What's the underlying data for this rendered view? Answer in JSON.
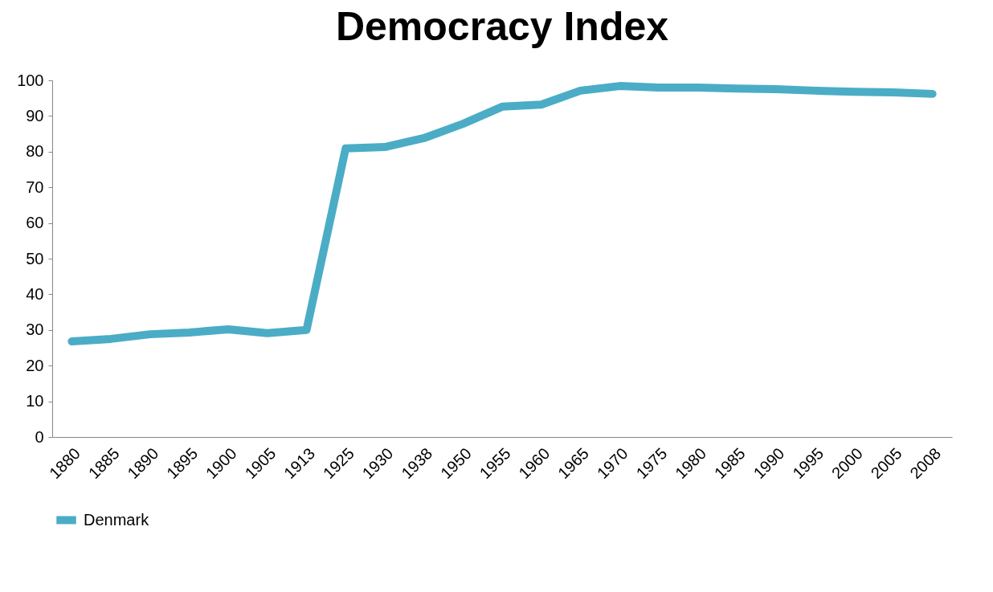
{
  "chart_data": {
    "type": "line",
    "title": "Democracy Index",
    "categories": [
      "1880",
      "1885",
      "1890",
      "1895",
      "1900",
      "1905",
      "1913",
      "1925",
      "1930",
      "1938",
      "1950",
      "1955",
      "1960",
      "1965",
      "1970",
      "1975",
      "1980",
      "1985",
      "1990",
      "1995",
      "2000",
      "2005",
      "2008"
    ],
    "series": [
      {
        "name": "Denmark",
        "color": "#4bacc6",
        "values": [
          26.8,
          27.5,
          28.8,
          29.3,
          30.2,
          29.1,
          30,
          80.9,
          81.3,
          83.8,
          87.8,
          92.6,
          93.2,
          97.1,
          98.4,
          98,
          98,
          97.7,
          97.5,
          97.1,
          96.8,
          96.6,
          96.2
        ]
      }
    ],
    "ylim": [
      0,
      100
    ],
    "yticks": [
      0,
      10,
      20,
      30,
      40,
      50,
      60,
      70,
      80,
      90,
      100
    ],
    "legend": "bottom",
    "grid": false
  }
}
